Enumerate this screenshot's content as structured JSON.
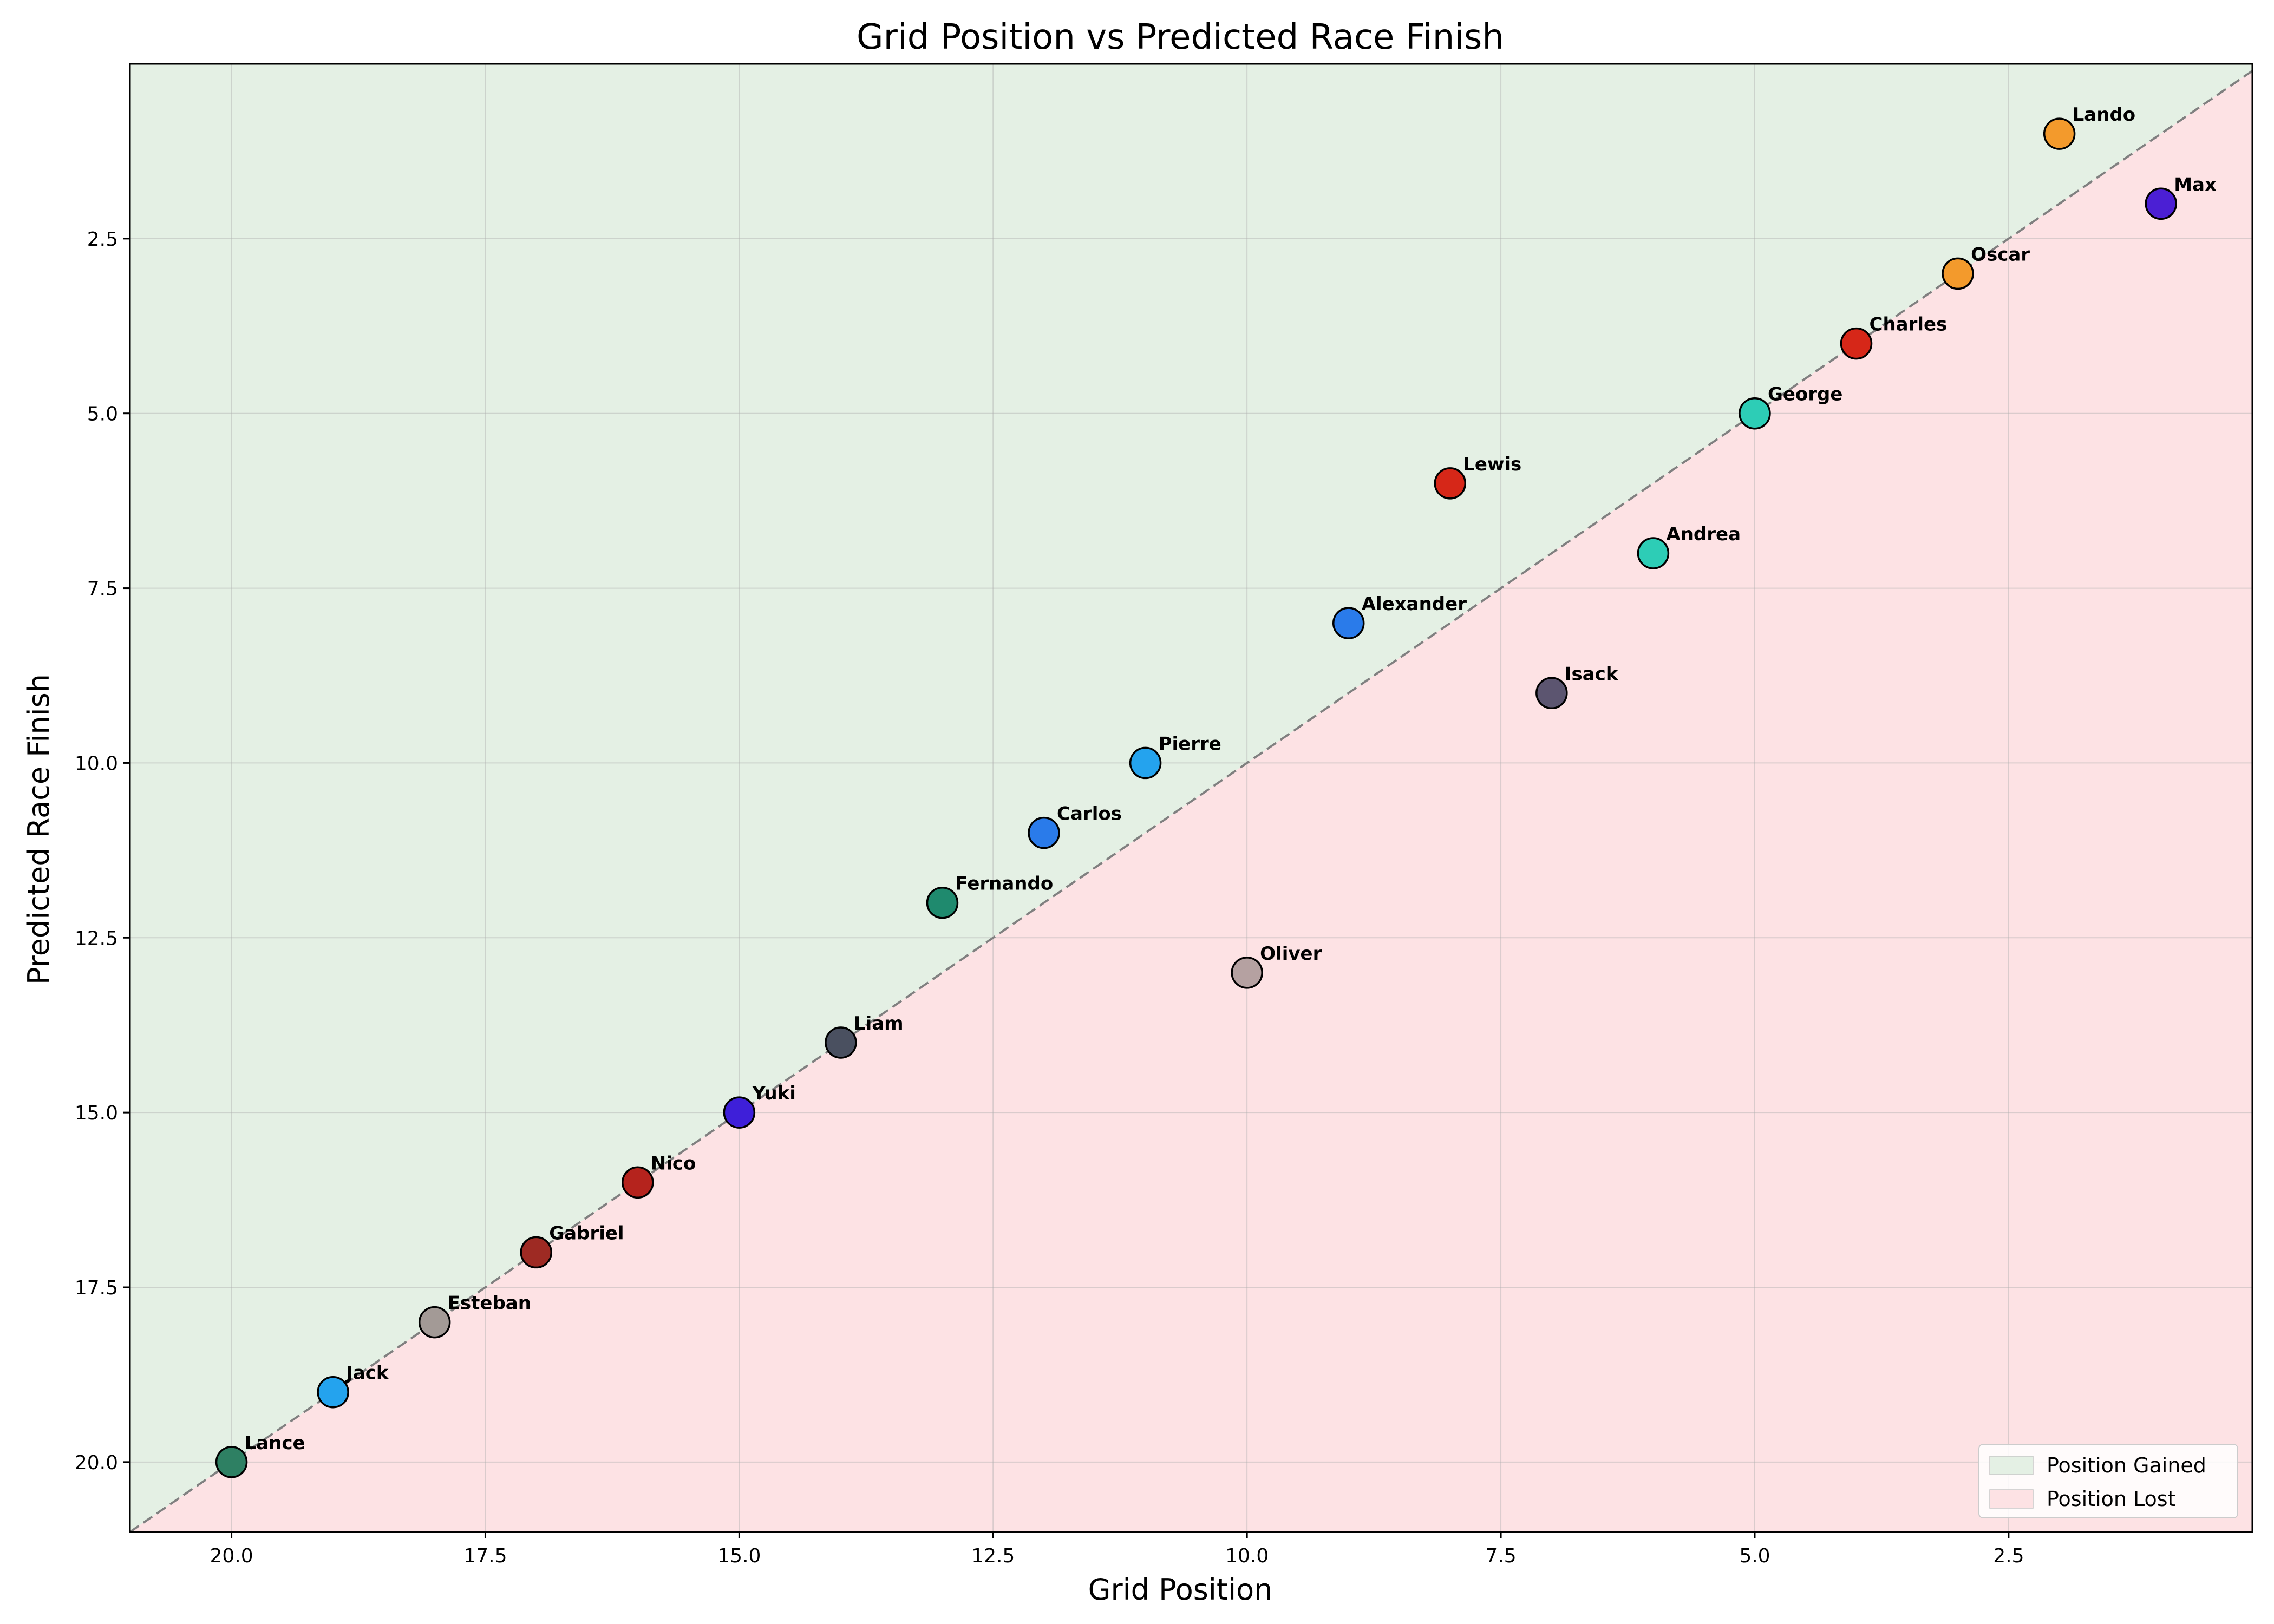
{
  "chart_data": {
    "type": "scatter",
    "title": "Grid Position vs Predicted Race Finish",
    "xlabel": "Grid Position",
    "ylabel": "Predicted Race Finish",
    "xlim": [
      21.0,
      0.1
    ],
    "ylim": [
      21.0,
      0.0
    ],
    "x_inverted": true,
    "y_inverted": true,
    "xticks": [
      20.0,
      17.5,
      15.0,
      12.5,
      10.0,
      7.5,
      5.0,
      2.5
    ],
    "xtick_labels": [
      "20.0",
      "17.5",
      "15.0",
      "12.5",
      "10.0",
      "7.5",
      "5.0",
      "2.5"
    ],
    "yticks": [
      2.5,
      5.0,
      7.5,
      10.0,
      12.5,
      15.0,
      17.5,
      20.0
    ],
    "ytick_labels": [
      "2.5",
      "5.0",
      "7.5",
      "10.0",
      "12.5",
      "15.0",
      "17.5",
      "20.0"
    ],
    "grid": true,
    "reference_line": "y = x (dashed)",
    "regions": [
      {
        "name": "Position Gained",
        "color": "#e4f0e4"
      },
      {
        "name": "Position Lost",
        "color": "#fde2e4"
      }
    ],
    "legend": {
      "placement": "lower-right",
      "entries": [
        {
          "label": "Position Gained",
          "color": "#e4f0e4"
        },
        {
          "label": "Position Lost",
          "color": "#fde2e4"
        }
      ]
    },
    "points": [
      {
        "name": "Lando",
        "x": 2,
        "y": 1,
        "color": "#F39A2C"
      },
      {
        "name": "Max",
        "x": 1,
        "y": 2,
        "color": "#4B1FD4"
      },
      {
        "name": "Oscar",
        "x": 3,
        "y": 3,
        "color": "#F39A2C"
      },
      {
        "name": "Charles",
        "x": 4,
        "y": 4,
        "color": "#D62718"
      },
      {
        "name": "George",
        "x": 5,
        "y": 5,
        "color": "#2DCDB6"
      },
      {
        "name": "Lewis",
        "x": 8,
        "y": 6,
        "color": "#D62718"
      },
      {
        "name": "Andrea",
        "x": 6,
        "y": 7,
        "color": "#2DCDB6"
      },
      {
        "name": "Alexander",
        "x": 9,
        "y": 8,
        "color": "#2A7BEA"
      },
      {
        "name": "Isack",
        "x": 7,
        "y": 9,
        "color": "#5C5570"
      },
      {
        "name": "Pierre",
        "x": 11,
        "y": 10,
        "color": "#24A3EE"
      },
      {
        "name": "Carlos",
        "x": 12,
        "y": 11,
        "color": "#2A7BEA"
      },
      {
        "name": "Fernando",
        "x": 13,
        "y": 12,
        "color": "#1F8A6E"
      },
      {
        "name": "Oliver",
        "x": 10,
        "y": 13,
        "color": "#B5A1A1"
      },
      {
        "name": "Liam",
        "x": 14,
        "y": 14,
        "color": "#4A5060"
      },
      {
        "name": "Yuki",
        "x": 15,
        "y": 15,
        "color": "#3E1FD9"
      },
      {
        "name": "Nico",
        "x": 16,
        "y": 16,
        "color": "#B5231D"
      },
      {
        "name": "Gabriel",
        "x": 17,
        "y": 17,
        "color": "#9E2A23"
      },
      {
        "name": "Esteban",
        "x": 18,
        "y": 18,
        "color": "#A39A96"
      },
      {
        "name": "Jack",
        "x": 19,
        "y": 19,
        "color": "#24A3EE"
      },
      {
        "name": "Lance",
        "x": 20,
        "y": 20,
        "color": "#2E8063"
      }
    ]
  }
}
